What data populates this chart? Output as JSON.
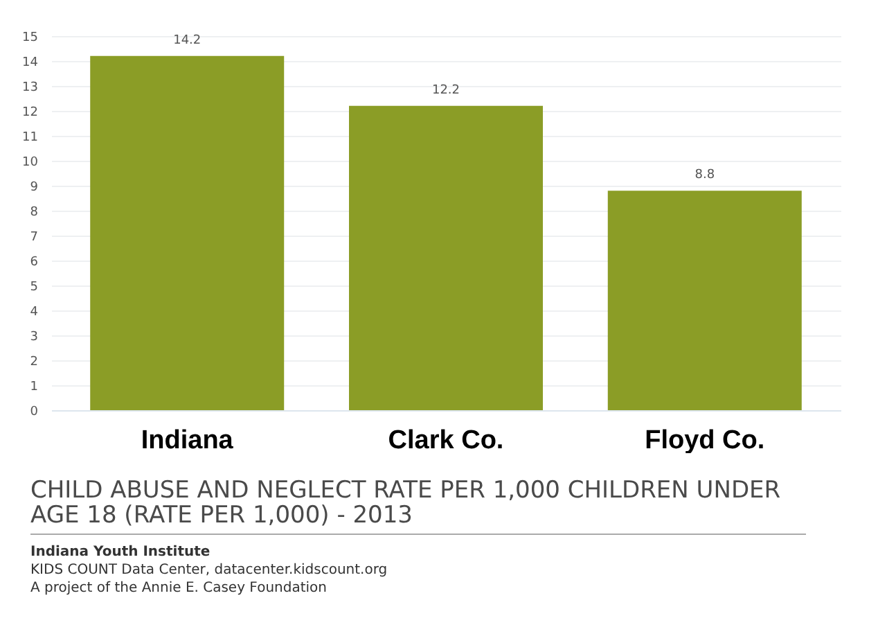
{
  "chart_data": {
    "type": "bar",
    "title": "CHILD ABUSE AND NEGLECT RATE PER 1,000 CHILDREN UNDER AGE 18 (RATE PER 1,000) - 2013",
    "categories": [
      "Indiana",
      "Clark Co.",
      "Floyd Co."
    ],
    "values": [
      14.2,
      12.2,
      8.8
    ],
    "color": "#8b9d26",
    "ylim": [
      0,
      15
    ],
    "yticks": [
      0,
      1,
      2,
      3,
      4,
      5,
      6,
      7,
      8,
      9,
      10,
      11,
      12,
      13,
      14,
      15
    ],
    "grid": "y",
    "data_labels": true,
    "annotations": [
      "Indiana Youth Institute",
      "KIDS COUNT Data Center, datacenter.kidscount.org",
      "A project of the Annie E. Casey Foundation"
    ]
  }
}
